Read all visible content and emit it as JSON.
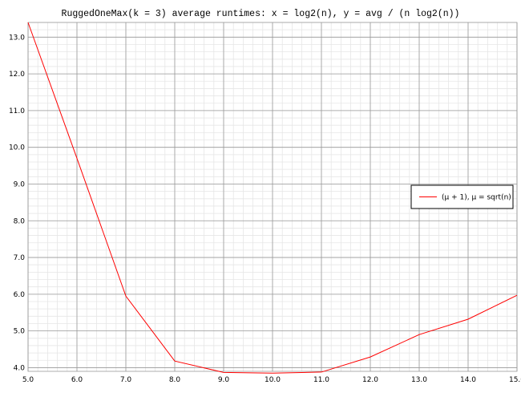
{
  "chart_data": {
    "type": "line",
    "title": "RuggedOneMax(k = 3) average runtimes: x = log2(n), y = avg / (n log2(n))",
    "xlabel": "",
    "ylabel": "",
    "xlim": [
      5.0,
      15.0
    ],
    "ylim": [
      3.9,
      13.4
    ],
    "x_ticks": [
      "5.0",
      "6.0",
      "7.0",
      "8.0",
      "9.0",
      "10.0",
      "11.0",
      "12.0",
      "13.0",
      "14.0",
      "15.0"
    ],
    "y_ticks": [
      "4.0",
      "5.0",
      "6.0",
      "7.0",
      "8.0",
      "9.0",
      "10.0",
      "11.0",
      "12.0",
      "13.0"
    ],
    "grid": true,
    "legend_position": "right",
    "series": [
      {
        "name": "(μ + 1), μ = sqrt(n)",
        "color": "#ff0000",
        "x": [
          5,
          6,
          7,
          8,
          9,
          10,
          11,
          12,
          13,
          14,
          15
        ],
        "y": [
          13.4,
          9.7,
          5.95,
          4.18,
          3.87,
          3.85,
          3.88,
          4.29,
          4.9,
          5.32,
          5.97
        ]
      }
    ]
  }
}
